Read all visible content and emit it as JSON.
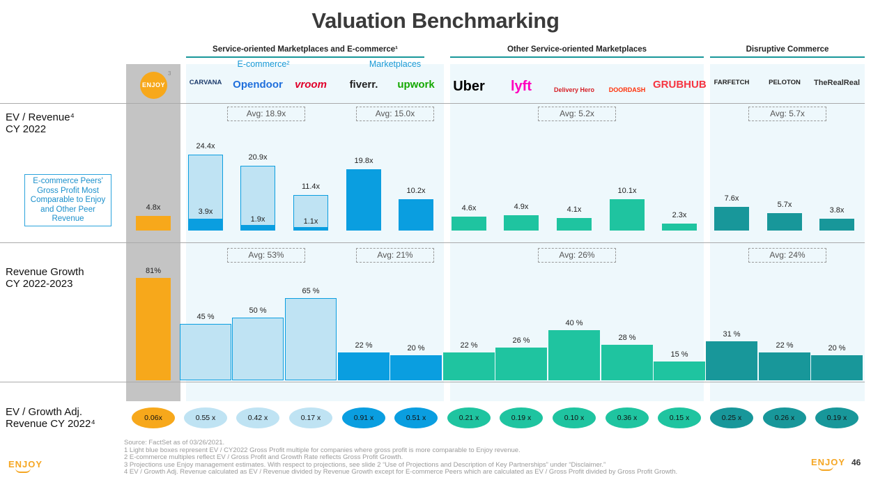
{
  "title": "Valuation Benchmarking",
  "groups": [
    {
      "label": "Service-oriented Marketplaces and E-commerce¹"
    },
    {
      "label": "Other Service-oriented Marketplaces"
    },
    {
      "label": "Disruptive Commerce"
    }
  ],
  "subgroups": [
    {
      "label": "E-commerce²"
    },
    {
      "label": "Marketplaces"
    }
  ],
  "row_labels": {
    "ev_revenue": [
      "EV / Revenue⁴",
      "CY 2022"
    ],
    "revenue_growth": [
      "Revenue Growth",
      "CY 2022-2023"
    ],
    "ev_growth": [
      "EV / Growth Adj.",
      "Revenue CY 2022⁴"
    ]
  },
  "note_box": "E-commerce Peers' Gross Profit Most Comparable to Enjoy and Other Peer Revenue",
  "enjoy_badge": {
    "text": "ENJOY",
    "superscript": "3"
  },
  "companies": [
    {
      "name": "ENJOY",
      "color": "#f7a81b"
    },
    {
      "name": "CARVANA",
      "color": "#1b3a6b"
    },
    {
      "name": "Opendoor",
      "color": "#1f6fdc"
    },
    {
      "name": "vroom",
      "color": "#e0002a"
    },
    {
      "name": "fiverr.",
      "color": "#222222"
    },
    {
      "name": "upwork",
      "color": "#14a800"
    },
    {
      "name": "Uber",
      "color": "#000000"
    },
    {
      "name": "lyft",
      "color": "#ff00bf"
    },
    {
      "name": "Delivery Hero",
      "color": "#d61f26"
    },
    {
      "name": "DOORDASH",
      "color": "#ff3008"
    },
    {
      "name": "GRUBHUB",
      "color": "#f63440"
    },
    {
      "name": "FARFETCH",
      "color": "#222222"
    },
    {
      "name": "PELOTON",
      "color": "#222222"
    },
    {
      "name": "TheRealReal",
      "color": "#333333"
    }
  ],
  "chart_data": [
    {
      "type": "bar",
      "title": "EV / Revenue CY 2022",
      "categories": [
        "Enjoy",
        "Carvana",
        "Opendoor",
        "Vroom",
        "Fiverr",
        "Upwork",
        "Uber",
        "Lyft",
        "Delivery Hero",
        "DoorDash",
        "Grubhub",
        "Farfetch",
        "Peloton",
        "TheRealReal"
      ],
      "series": [
        {
          "name": "EV / Revenue",
          "values": [
            4.8,
            3.9,
            1.9,
            1.1,
            19.8,
            10.2,
            4.6,
            4.9,
            4.1,
            10.1,
            2.3,
            7.6,
            5.7,
            3.8
          ]
        },
        {
          "name": "EV / Gross Profit",
          "values": [
            null,
            24.4,
            20.9,
            11.4,
            null,
            null,
            null,
            null,
            null,
            null,
            null,
            null,
            null,
            null
          ]
        }
      ],
      "labels": [
        "4.8x",
        "3.9x",
        "1.9x",
        "1.1x",
        "19.8x",
        "10.2x",
        "4.6x",
        "4.9x",
        "4.1x",
        "10.1x",
        "2.3x",
        "7.6x",
        "5.7x",
        "3.8x"
      ],
      "gp_labels": [
        "24.4x",
        "20.9x",
        "11.4x"
      ],
      "averages": [
        "Avg: 18.9x",
        "Avg: 15.0x",
        "Avg: 5.2x",
        "Avg: 5.7x"
      ],
      "ylim": [
        0,
        25
      ]
    },
    {
      "type": "bar",
      "title": "Revenue Growth CY 2022-2023",
      "categories": [
        "Enjoy",
        "Carvana",
        "Opendoor",
        "Vroom",
        "Fiverr",
        "Upwork",
        "Uber",
        "Lyft",
        "Delivery Hero",
        "DoorDash",
        "Grubhub",
        "Farfetch",
        "Peloton",
        "TheRealReal"
      ],
      "values": [
        81,
        45,
        50,
        65,
        22,
        20,
        22,
        26,
        40,
        28,
        15,
        31,
        22,
        20
      ],
      "labels": [
        "81%",
        "45 %",
        "50 %",
        "65 %",
        "22 %",
        "20 %",
        "22 %",
        "26 %",
        "40 %",
        "28 %",
        "15 %",
        "31 %",
        "22 %",
        "20 %"
      ],
      "averages": [
        "Avg: 53%",
        "Avg: 21%",
        "Avg: 26%",
        "Avg: 24%"
      ],
      "ylim": [
        0,
        85
      ]
    },
    {
      "type": "table",
      "title": "EV / Growth Adj. Revenue CY 2022",
      "values": [
        0.06,
        0.55,
        0.42,
        0.17,
        0.91,
        0.51,
        0.21,
        0.19,
        0.1,
        0.36,
        0.15,
        0.25,
        0.26,
        0.19
      ],
      "labels": [
        "0.06x",
        "0.55 x",
        "0.42 x",
        "0.17 x",
        "0.91 x",
        "0.51 x",
        "0.21 x",
        "0.19 x",
        "0.10 x",
        "0.36 x",
        "0.15 x",
        "0.25 x",
        "0.26 x",
        "0.19 x"
      ]
    }
  ],
  "colors": {
    "enjoy": "#f7a81b",
    "ecom_light": "#bfe3f3",
    "ecom_dark": "#0a9ee0",
    "marketplace": "#0a9ee0",
    "other": "#1fc4a0",
    "disruptive": "#18979a",
    "enjoy_band": "#c4c4c4",
    "panel_blue": "#eef8fc"
  },
  "footnotes": [
    "Source: FactSet as of 03/26/2021.",
    "1 Light blue boxes represent EV / CY2022 Gross Profit multiple for companies where gross profit is more comparable to Enjoy revenue.",
    "2 E-commerce multiples reflect EV / Gross Profit and Growth Rate reflects Gross Profit Growth.",
    "3 Projections use Enjoy management estimates. With respect to projections, see slide 2 “Use of Projections and Description of Key Partnerships” under “Disclaimer.”",
    "4 EV / Growth Adj. Revenue calculated as EV / Revenue divided by Revenue Growth except for E-commerce Peers which are calculated as EV / Gross Profit divided by Gross Profit Growth."
  ],
  "footer": {
    "logo": "ENJOY",
    "page": "46"
  }
}
